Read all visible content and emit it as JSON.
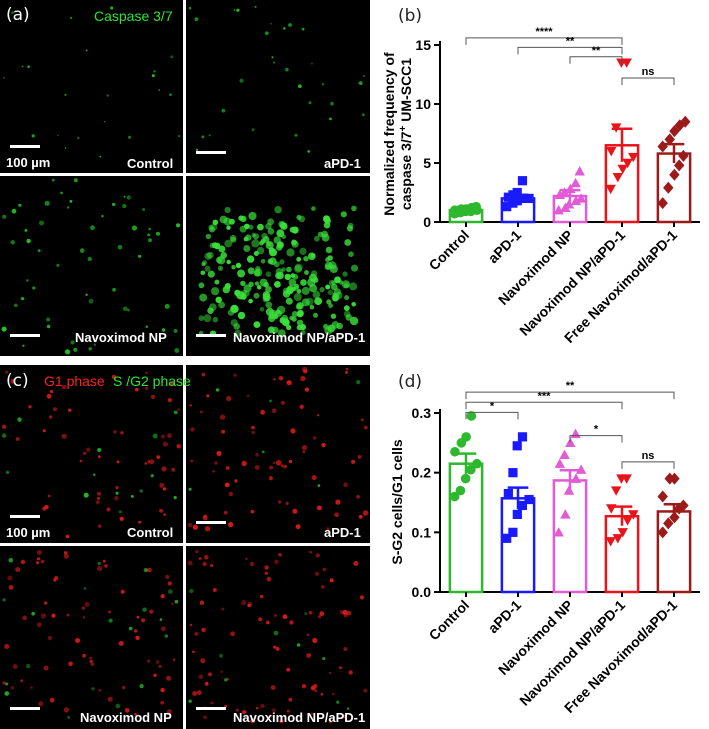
{
  "panel_a": {
    "letter": "(a)",
    "stain_label": "Caspase 3/7",
    "stain_color": "#2ee52e",
    "scale_bar_text": "100 µm",
    "tiles": [
      {
        "label": "Control"
      },
      {
        "label": "aPD-1"
      },
      {
        "label": "Navoximod NP"
      },
      {
        "label": "Navoximod NP/aPD-1"
      }
    ]
  },
  "panel_c": {
    "letter": "(c)",
    "stain_labels": [
      {
        "text": "G1 phase",
        "color": "#ff2020"
      },
      {
        "text": "S /G2 phase",
        "color": "#2ee52e"
      }
    ],
    "scale_bar_text": "100 µm",
    "tiles": [
      {
        "label": "Control"
      },
      {
        "label": "aPD-1"
      },
      {
        "label": "Navoximod NP"
      },
      {
        "label": "Navoximod NP/aPD-1"
      }
    ]
  },
  "chart_data": [
    {
      "panel": "(b)",
      "type": "bar",
      "categories": [
        "Control",
        "aPD-1",
        "Navoximod NP",
        "Navoximod NP/aPD-1",
        "Free Navoximod/aPD-1"
      ],
      "ylabel_line1": "Normalized frequency of",
      "ylabel_line2": "caspase 3/7",
      "ylabel_sup": "+",
      "ylabel_tail": " UM-SCC1",
      "ylim": [
        0,
        15
      ],
      "yticks": [
        "0",
        "5",
        "10",
        "15"
      ],
      "ytick_values": [
        0,
        5,
        10,
        15
      ],
      "means": [
        1.0,
        2.0,
        2.2,
        6.5,
        5.8
      ],
      "sem": [
        0.1,
        0.3,
        0.5,
        1.4,
        0.8
      ],
      "points": [
        [
          0.7,
          0.8,
          0.9,
          0.9,
          1.0,
          1.0,
          1.1,
          1.1,
          1.2,
          1.3
        ],
        [
          1.3,
          1.6,
          1.8,
          2.0,
          2.0,
          2.1,
          2.3,
          2.5,
          3.5
        ],
        [
          1.0,
          1.2,
          1.5,
          1.8,
          2.0,
          2.3,
          2.5,
          2.8,
          3.3,
          4.3
        ],
        [
          2.8,
          3.8,
          4.5,
          5.0,
          5.5,
          6.0,
          8.0,
          13.5,
          13.5
        ],
        [
          1.6,
          2.9,
          4.0,
          4.8,
          5.6,
          6.4,
          7.0,
          7.7,
          8.2,
          8.5
        ]
      ],
      "markers": [
        "circle",
        "square",
        "triangle",
        "triangle-down",
        "diamond"
      ],
      "colors": [
        "#2db82d",
        "#1a1aff",
        "#e35ad6",
        "#e8141a",
        "#9b1a1a"
      ],
      "significance": [
        {
          "from": 0,
          "to": 3,
          "label": "****",
          "level": 15.6
        },
        {
          "from": 1,
          "to": 3,
          "label": "**",
          "level": 14.8
        },
        {
          "from": 2,
          "to": 3,
          "label": "**",
          "level": 14.0
        },
        {
          "from": 3,
          "to": 4,
          "label": "ns",
          "level": 12.2
        }
      ]
    },
    {
      "panel": "(d)",
      "type": "bar",
      "categories": [
        "Control",
        "aPD-1",
        "Navoximod NP",
        "Navoximod NP/aPD-1",
        "Free Navoximod/aPD-1"
      ],
      "ylabel": "S-G2 cells/G1 cells",
      "ylim": [
        0,
        0.3
      ],
      "yticks": [
        "0.0",
        "0.1",
        "0.2",
        "0.3"
      ],
      "ytick_values": [
        0.0,
        0.1,
        0.2,
        0.3
      ],
      "means": [
        0.215,
        0.157,
        0.187,
        0.127,
        0.135
      ],
      "sem": [
        0.017,
        0.018,
        0.017,
        0.016,
        0.012
      ],
      "points": [
        [
          0.16,
          0.17,
          0.19,
          0.205,
          0.215,
          0.235,
          0.25,
          0.26,
          0.295
        ],
        [
          0.09,
          0.1,
          0.13,
          0.145,
          0.155,
          0.165,
          0.2,
          0.245,
          0.26
        ],
        [
          0.1,
          0.13,
          0.17,
          0.19,
          0.205,
          0.215,
          0.23,
          0.25,
          0.265
        ],
        [
          0.085,
          0.09,
          0.1,
          0.12,
          0.13,
          0.14,
          0.17,
          0.19,
          0.19
        ],
        [
          0.1,
          0.115,
          0.125,
          0.14,
          0.145,
          0.16,
          0.19,
          0.19
        ]
      ],
      "markers": [
        "circle",
        "square",
        "triangle",
        "triangle-down",
        "diamond"
      ],
      "colors": [
        "#2db82d",
        "#1a1aff",
        "#e35ad6",
        "#e8141a",
        "#9b1a1a"
      ],
      "significance": [
        {
          "from": 0,
          "to": 4,
          "label": "**",
          "level": 0.335
        },
        {
          "from": 0,
          "to": 3,
          "label": "***",
          "level": 0.318
        },
        {
          "from": 0,
          "to": 1,
          "label": "*",
          "level": 0.301
        },
        {
          "from": 2,
          "to": 3,
          "label": "*",
          "level": 0.262
        },
        {
          "from": 3,
          "to": 4,
          "label": "ns",
          "level": 0.218
        }
      ]
    }
  ]
}
